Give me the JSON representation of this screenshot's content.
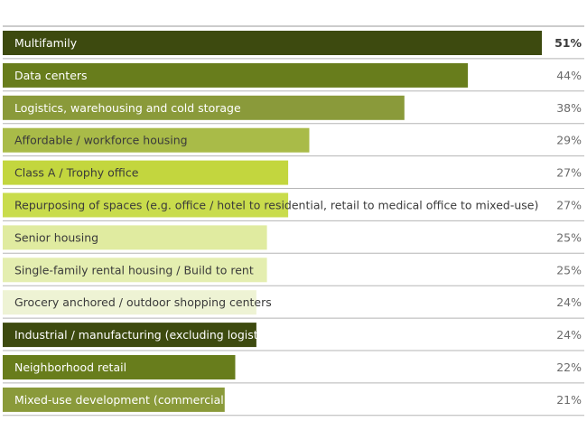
{
  "chart_data": {
    "type": "bar",
    "orientation": "horizontal",
    "title": "",
    "xlabel": "",
    "ylabel": "",
    "xlim": [
      0,
      51
    ],
    "value_suffix": "%",
    "categories": [
      "Multifamily",
      "Data centers",
      "Logistics, warehousing and cold storage",
      "Affordable / workforce housing",
      "Class A / Trophy office",
      "Repurposing of spaces (e.g. office / hotel to residential, retail to medical office to mixed-use)",
      "Senior housing",
      "Single-family rental housing / Build to rent",
      "Grocery anchored / outdoor shopping centers",
      "Industrial / manufacturing (excluding logistics, warehousing and cold storage)",
      "Neighborhood retail",
      "Mixed-use development (commercial / residential / retail)"
    ],
    "values": [
      51,
      44,
      38,
      29,
      27,
      27,
      25,
      25,
      24,
      24,
      22,
      21
    ],
    "value_labels": [
      "51%",
      "44%",
      "38%",
      "29%",
      "27%",
      "27%",
      "25%",
      "25%",
      "24%",
      "24%",
      "22%",
      "21%"
    ],
    "bar_colors": [
      "#3d4a0f",
      "#687d1c",
      "#8a9a3a",
      "#a9bb48",
      "#c3d63e",
      "#c9dc4c",
      "#e0eba0",
      "#e4eeb0",
      "#eef3d4",
      "#3d4a0f",
      "#687d1c",
      "#8a9a3a"
    ],
    "label_dark_on": [
      true,
      true,
      true,
      false,
      false,
      false,
      false,
      false,
      false,
      true,
      true,
      true
    ]
  }
}
